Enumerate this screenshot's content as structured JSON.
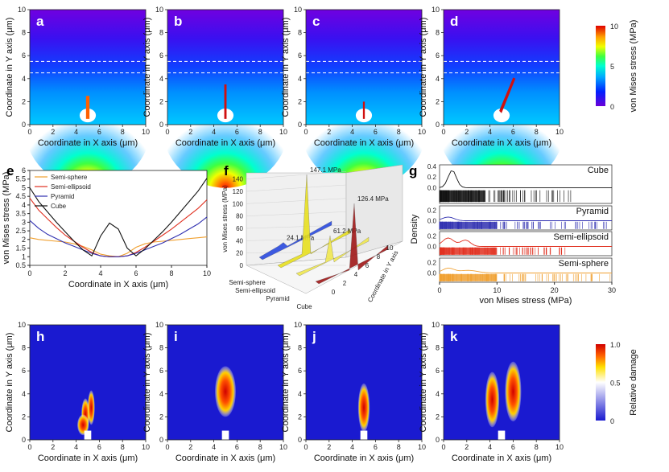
{
  "colors": {
    "jet": [
      "#4a00d8",
      "#0020ff",
      "#00a8ff",
      "#00ffd0",
      "#40ff40",
      "#f0ff00",
      "#ffa000",
      "#ff2000",
      "#c00000"
    ],
    "damage": [
      "#1a1ad0",
      "#ffffff",
      "#ffe000",
      "#ff6000",
      "#e00000"
    ],
    "semi_sphere": "#f0a030",
    "semi_ellipsoid": "#e03020",
    "pyramid": "#3030b0",
    "cube": "#111111"
  },
  "chart_data": [
    {
      "panel": "a",
      "type": "heatmap",
      "quantity": "von Mises stress",
      "xlabel": "Coordinate in X axis (μm)",
      "ylabel": "Coordinate in Y axis (μm)",
      "x_ticks": [
        "0",
        "2",
        "4",
        "6",
        "8",
        "10"
      ],
      "y_ticks": [
        "0",
        "2",
        "4",
        "6",
        "8",
        "10"
      ],
      "xlim": [
        0,
        10
      ],
      "ylim": [
        0,
        10
      ],
      "dashed_lines_y": [
        4.5,
        5.5
      ]
    },
    {
      "panel": "b",
      "type": "heatmap",
      "quantity": "von Mises stress",
      "xlabel": "Coordinate in X axis (μm)",
      "ylabel": "Coordinate in Y axis (μm)",
      "x_ticks": [
        "0",
        "2",
        "4",
        "6",
        "8",
        "10"
      ],
      "y_ticks": [
        "0",
        "2",
        "4",
        "6",
        "8",
        "10"
      ],
      "xlim": [
        0,
        10
      ],
      "ylim": [
        0,
        10
      ],
      "dashed_lines_y": [
        4.5,
        5.5
      ]
    },
    {
      "panel": "c",
      "type": "heatmap",
      "quantity": "von Mises stress",
      "xlabel": "Coordinate in X axis (μm)",
      "ylabel": "Coordinate in Y axis (μm)",
      "x_ticks": [
        "0",
        "2",
        "4",
        "6",
        "8",
        "10"
      ],
      "y_ticks": [
        "0",
        "2",
        "4",
        "6",
        "8",
        "10"
      ],
      "xlim": [
        0,
        10
      ],
      "ylim": [
        0,
        10
      ],
      "dashed_lines_y": [
        4.5,
        5.5
      ]
    },
    {
      "panel": "d",
      "type": "heatmap",
      "quantity": "von Mises stress",
      "xlabel": "Coordinate in X axis (μm)",
      "ylabel": "Coordinate in Y axis (μm)",
      "x_ticks": [
        "0",
        "2",
        "4",
        "6",
        "8",
        "10"
      ],
      "y_ticks": [
        "0",
        "2",
        "4",
        "6",
        "8",
        "10"
      ],
      "xlim": [
        0,
        10
      ],
      "ylim": [
        0,
        10
      ],
      "dashed_lines_y": [
        4.5,
        5.5
      ],
      "colorbar": {
        "label": "von Mises stress (MPa)",
        "ticks": [
          "0",
          "5",
          "10"
        ],
        "range": [
          0,
          10
        ]
      }
    },
    {
      "panel": "e",
      "type": "line",
      "xlabel": "Coordinate in X axis (μm)",
      "ylabel": "von Mises stress (MPa)",
      "xlim": [
        0,
        10
      ],
      "ylim": [
        0.5,
        6
      ],
      "x_ticks": [
        "0",
        "2",
        "4",
        "6",
        "8",
        "10"
      ],
      "y_ticks": [
        "0.5",
        "1",
        "1.5",
        "2",
        "2.5",
        "3",
        "3.5",
        "4",
        "4.5",
        "5",
        "5.5",
        "6"
      ],
      "legend": [
        "Semi-sphere",
        "Semi-ellipsoid",
        "Pyramid",
        "Cube"
      ],
      "x": [
        0,
        0.5,
        1,
        1.5,
        2,
        2.5,
        3,
        3.5,
        4,
        4.5,
        5,
        5.5,
        6,
        6.5,
        7,
        7.5,
        8,
        8.5,
        9,
        9.5,
        10
      ],
      "series": [
        {
          "name": "Semi-sphere",
          "values": [
            2.1,
            2.0,
            1.95,
            1.9,
            1.85,
            1.75,
            1.6,
            1.4,
            1.15,
            1.05,
            1.0,
            1.2,
            1.55,
            1.75,
            1.85,
            1.9,
            1.95,
            2.0,
            2.05,
            2.1,
            2.15
          ]
        },
        {
          "name": "Semi-ellipsoid",
          "values": [
            4.4,
            3.7,
            3.2,
            2.7,
            2.25,
            1.9,
            1.55,
            1.25,
            1.05,
            1.0,
            1.0,
            1.05,
            1.25,
            1.55,
            1.9,
            2.25,
            2.6,
            3.0,
            3.4,
            3.8,
            4.3
          ]
        },
        {
          "name": "Pyramid",
          "values": [
            3.1,
            2.65,
            2.3,
            2.05,
            1.8,
            1.6,
            1.4,
            1.2,
            1.05,
            1.0,
            1.0,
            1.05,
            1.2,
            1.4,
            1.6,
            1.8,
            2.05,
            2.3,
            2.6,
            2.9,
            3.3
          ]
        },
        {
          "name": "Cube",
          "values": [
            5.0,
            4.2,
            3.6,
            3.0,
            2.45,
            1.9,
            1.4,
            1.05,
            2.2,
            2.95,
            2.6,
            1.5,
            1.05,
            1.45,
            1.95,
            2.45,
            3.0,
            3.6,
            4.2,
            4.8,
            5.55
          ]
        }
      ]
    },
    {
      "panel": "f",
      "type": "area",
      "view": "3d-waterfall",
      "zlabel": "von Mises stress (MPa)",
      "xlabel": "Coordinate in Y axis",
      "categories": [
        "Semi-sphere",
        "Semi-ellipsoid",
        "Pyramid",
        "Cube"
      ],
      "z_ticks": [
        "0",
        "20",
        "40",
        "60",
        "80",
        "100",
        "120",
        "140"
      ],
      "x_ticks": [
        "0",
        "2",
        "4",
        "6",
        "8",
        "10"
      ],
      "peaks": [
        {
          "category": "Semi-sphere",
          "label": "24.1 MPa",
          "value": 24.1
        },
        {
          "category": "Semi-ellipsoid",
          "label": "147.1 MPa",
          "value": 147.1
        },
        {
          "category": "Pyramid",
          "label": "61.2 MPa",
          "value": 61.2
        },
        {
          "category": "Cube",
          "label": "126.4 MPa",
          "value": 126.4
        }
      ]
    },
    {
      "panel": "g",
      "type": "scatter",
      "view": "density-rug",
      "xlabel": "von Mises stress (MPa)",
      "ylabel": "Density",
      "xlim": [
        0,
        30
      ],
      "x_ticks": [
        "0",
        "10",
        "20",
        "30"
      ],
      "rows": [
        {
          "name": "Cube",
          "y_ticks": [
            "0.0",
            "0.2",
            "0.4"
          ],
          "peak_density": 0.33,
          "rug_max": 24
        },
        {
          "name": "Pyramid",
          "y_ticks": [
            "0.0",
            "0.2"
          ],
          "peak_density": 0.07,
          "rug_max": 30
        },
        {
          "name": "Semi-ellipsoid",
          "y_ticks": [
            "0.0",
            "0.2"
          ],
          "peak_density": 0.16,
          "rug_max": 22
        },
        {
          "name": "Semi-sphere",
          "y_ticks": [
            "0.0",
            "0.2"
          ],
          "peak_density": 0.09,
          "rug_max": 30
        }
      ]
    },
    {
      "panel": "h",
      "type": "heatmap",
      "quantity": "Relative damage",
      "xlabel": "Coordinate in X axis (μm)",
      "ylabel": "Coordinate in Y axis (μm)",
      "x_ticks": [
        "0",
        "2",
        "4",
        "6",
        "8",
        "10"
      ],
      "y_ticks": [
        "0",
        "2",
        "4",
        "6",
        "8",
        "10"
      ],
      "xlim": [
        0,
        10
      ],
      "ylim": [
        0,
        10
      ]
    },
    {
      "panel": "i",
      "type": "heatmap",
      "quantity": "Relative damage",
      "xlabel": "Coordinate in X axis (μm)",
      "ylabel": "Coordinate in Y axis (μm)",
      "x_ticks": [
        "0",
        "2",
        "4",
        "6",
        "8",
        "10"
      ],
      "y_ticks": [
        "0",
        "2",
        "4",
        "6",
        "8",
        "10"
      ],
      "xlim": [
        0,
        10
      ],
      "ylim": [
        0,
        10
      ]
    },
    {
      "panel": "j",
      "type": "heatmap",
      "quantity": "Relative damage",
      "xlabel": "Coordinate in X axis (μm)",
      "ylabel": "Coordinate in Y axis (μm)",
      "x_ticks": [
        "0",
        "2",
        "4",
        "6",
        "8",
        "10"
      ],
      "y_ticks": [
        "0",
        "2",
        "4",
        "6",
        "8",
        "10"
      ],
      "xlim": [
        0,
        10
      ],
      "ylim": [
        0,
        10
      ]
    },
    {
      "panel": "k",
      "type": "heatmap",
      "quantity": "Relative damage",
      "xlabel": "Coordinate in X axis (μm)",
      "ylabel": "Coordinate in Y axis (μm)",
      "x_ticks": [
        "0",
        "2",
        "4",
        "6",
        "8",
        "10"
      ],
      "y_ticks": [
        "0",
        "2",
        "4",
        "6",
        "8",
        "10"
      ],
      "xlim": [
        0,
        10
      ],
      "ylim": [
        0,
        10
      ],
      "colorbar": {
        "label": "Relative damage",
        "ticks": [
          "0",
          "0.5",
          "1.0"
        ],
        "range": [
          0,
          1
        ]
      }
    }
  ]
}
